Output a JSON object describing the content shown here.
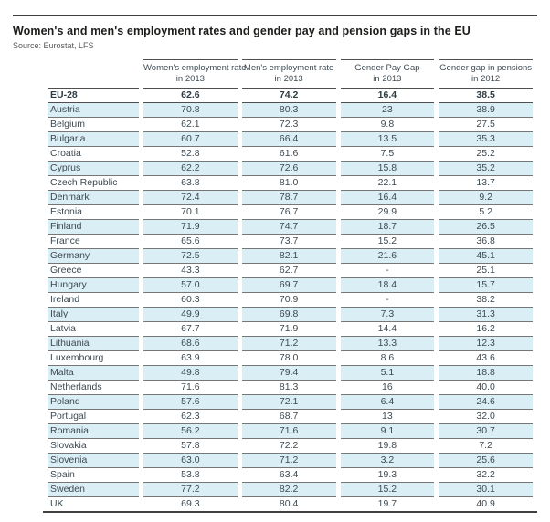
{
  "header": {
    "title": "Women's and men's employment rates and gender pay and pension gaps in the EU",
    "source": "Source: Eurostat, LFS"
  },
  "table": {
    "columns": [
      {
        "label": "Women's employment rate",
        "sub": "in 2013"
      },
      {
        "label": "Men's employment rate",
        "sub": "in 2013"
      },
      {
        "label": "Gender Pay Gap",
        "sub": "in 2013"
      },
      {
        "label": "Gender gap in pensions",
        "sub": "in 2012"
      }
    ],
    "rows": [
      {
        "name": "EU-28",
        "values": [
          "62.6",
          "74.2",
          "16.4",
          "38.5"
        ],
        "bold": true
      },
      {
        "name": "Austria",
        "values": [
          "70.8",
          "80.3",
          "23",
          "38.9"
        ]
      },
      {
        "name": "Belgium",
        "values": [
          "62.1",
          "72.3",
          "9.8",
          "27.5"
        ]
      },
      {
        "name": "Bulgaria",
        "values": [
          "60.7",
          "66.4",
          "13.5",
          "35.3"
        ]
      },
      {
        "name": "Croatia",
        "values": [
          "52.8",
          "61.6",
          "7.5",
          "25.2"
        ]
      },
      {
        "name": "Cyprus",
        "values": [
          "62.2",
          "72.6",
          "15.8",
          "35.2"
        ]
      },
      {
        "name": "Czech Republic",
        "values": [
          "63.8",
          "81.0",
          "22.1",
          "13.7"
        ]
      },
      {
        "name": "Denmark",
        "values": [
          "72.4",
          "78.7",
          "16.4",
          "9.2"
        ]
      },
      {
        "name": "Estonia",
        "values": [
          "70.1",
          "76.7",
          "29.9",
          "5.2"
        ]
      },
      {
        "name": "Finland",
        "values": [
          "71.9",
          "74.7",
          "18.7",
          "26.5"
        ]
      },
      {
        "name": "France",
        "values": [
          "65.6",
          "73.7",
          "15.2",
          "36.8"
        ]
      },
      {
        "name": "Germany",
        "values": [
          "72.5",
          "82.1",
          "21.6",
          "45.1"
        ]
      },
      {
        "name": "Greece",
        "values": [
          "43.3",
          "62.7",
          "-",
          "25.1"
        ]
      },
      {
        "name": "Hungary",
        "values": [
          "57.0",
          "69.7",
          "18.4",
          "15.7"
        ]
      },
      {
        "name": "Ireland",
        "values": [
          "60.3",
          "70.9",
          "-",
          "38.2"
        ]
      },
      {
        "name": "Italy",
        "values": [
          "49.9",
          "69.8",
          "7.3",
          "31.3"
        ]
      },
      {
        "name": "Latvia",
        "values": [
          "67.7",
          "71.9",
          "14.4",
          "16.2"
        ]
      },
      {
        "name": "Lithuania",
        "values": [
          "68.6",
          "71.2",
          "13.3",
          "12.3"
        ]
      },
      {
        "name": "Luxembourg",
        "values": [
          "63.9",
          "78.0",
          "8.6",
          "43.6"
        ]
      },
      {
        "name": "Malta",
        "values": [
          "49.8",
          "79.4",
          "5.1",
          "18.8"
        ]
      },
      {
        "name": "Netherlands",
        "values": [
          "71.6",
          "81.3",
          "16",
          "40.0"
        ]
      },
      {
        "name": "Poland",
        "values": [
          "57.6",
          "72.1",
          "6.4",
          "24.6"
        ]
      },
      {
        "name": "Portugal",
        "values": [
          "62.3",
          "68.7",
          "13",
          "32.0"
        ]
      },
      {
        "name": "Romania",
        "values": [
          "56.2",
          "71.6",
          "9.1",
          "30.7"
        ]
      },
      {
        "name": "Slovakia",
        "values": [
          "57.8",
          "72.2",
          "19.8",
          "7.2"
        ]
      },
      {
        "name": "Slovenia",
        "values": [
          "63.0",
          "71.2",
          "3.2",
          "25.6"
        ]
      },
      {
        "name": "Spain",
        "values": [
          "53.8",
          "63.4",
          "19.3",
          "32.2"
        ]
      },
      {
        "name": "Sweden",
        "values": [
          "77.2",
          "82.2",
          "15.2",
          "30.1"
        ]
      },
      {
        "name": "UK",
        "values": [
          "69.3",
          "80.4",
          "19.7",
          "40.9"
        ]
      }
    ]
  },
  "chart_data": {
    "type": "table",
    "title": "Women's and men's employment rates and gender pay and pension gaps in the EU",
    "source": "Source: Eurostat, LFS",
    "categories": [
      "EU-28",
      "Austria",
      "Belgium",
      "Bulgaria",
      "Croatia",
      "Cyprus",
      "Czech Republic",
      "Denmark",
      "Estonia",
      "Finland",
      "France",
      "Germany",
      "Greece",
      "Hungary",
      "Ireland",
      "Italy",
      "Latvia",
      "Lithuania",
      "Luxembourg",
      "Malta",
      "Netherlands",
      "Poland",
      "Portugal",
      "Romania",
      "Slovakia",
      "Slovenia",
      "Spain",
      "Sweden",
      "UK"
    ],
    "series": [
      {
        "name": "Women's employment rate in 2013",
        "values": [
          62.6,
          70.8,
          62.1,
          60.7,
          52.8,
          62.2,
          63.8,
          72.4,
          70.1,
          71.9,
          65.6,
          72.5,
          43.3,
          57.0,
          60.3,
          49.9,
          67.7,
          68.6,
          63.9,
          49.8,
          71.6,
          57.6,
          62.3,
          56.2,
          57.8,
          63.0,
          53.8,
          77.2,
          69.3
        ]
      },
      {
        "name": "Men's employment rate in 2013",
        "values": [
          74.2,
          80.3,
          72.3,
          66.4,
          61.6,
          72.6,
          81.0,
          78.7,
          76.7,
          74.7,
          73.7,
          82.1,
          62.7,
          69.7,
          70.9,
          69.8,
          71.9,
          71.2,
          78.0,
          79.4,
          81.3,
          72.1,
          68.7,
          71.6,
          72.2,
          71.2,
          63.4,
          82.2,
          80.4
        ]
      },
      {
        "name": "Gender Pay Gap in 2013",
        "values": [
          16.4,
          23,
          9.8,
          13.5,
          7.5,
          15.8,
          22.1,
          16.4,
          29.9,
          18.7,
          15.2,
          21.6,
          null,
          18.4,
          null,
          7.3,
          14.4,
          13.3,
          8.6,
          5.1,
          16,
          6.4,
          13,
          9.1,
          19.8,
          3.2,
          19.3,
          15.2,
          19.7
        ]
      },
      {
        "name": "Gender gap in pensions in 2012",
        "values": [
          38.5,
          38.9,
          27.5,
          35.3,
          25.2,
          35.2,
          13.7,
          9.2,
          5.2,
          26.5,
          36.8,
          45.1,
          25.1,
          15.7,
          38.2,
          31.3,
          16.2,
          12.3,
          43.6,
          18.8,
          40.0,
          24.6,
          32.0,
          30.7,
          7.2,
          25.6,
          32.2,
          30.1,
          40.9
        ]
      }
    ]
  },
  "colors": {
    "stripe": "#daeef5",
    "rule": "#3f3f3f",
    "row_border": "#767676",
    "title_text": "#1d1d1b",
    "table_text": "#3d4a52"
  }
}
